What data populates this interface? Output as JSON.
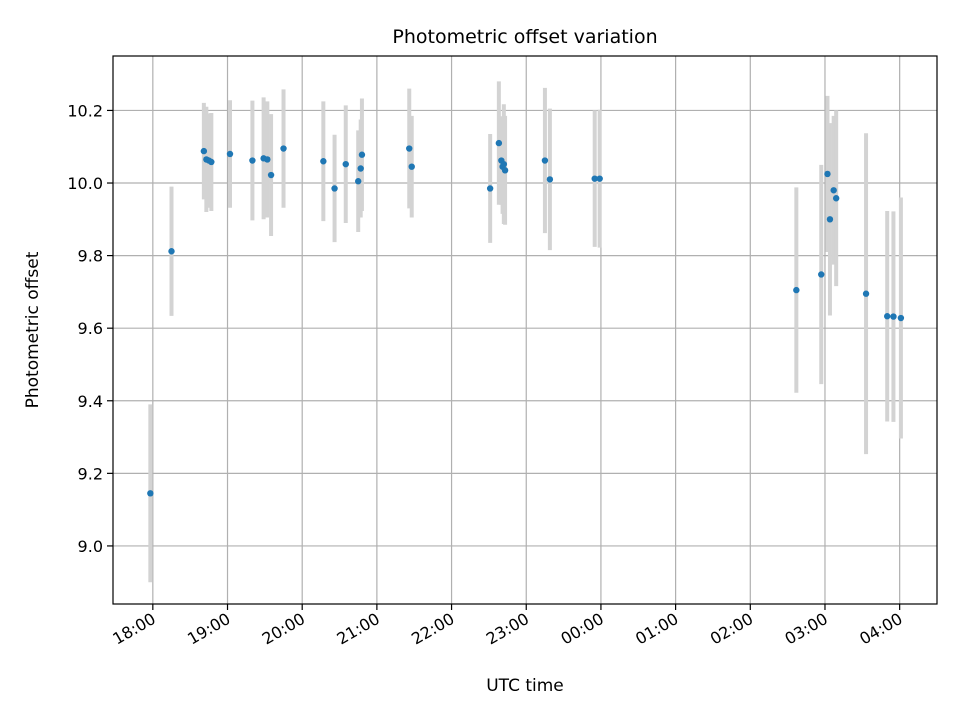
{
  "chart_data": {
    "type": "scatter",
    "title": "Photometric offset variation",
    "xlabel": "UTC time",
    "ylabel": "Photometric offset",
    "x_axis_kind": "time",
    "x_ticks": [
      {
        "t": "18:00",
        "label": "18:00"
      },
      {
        "t": "19:00",
        "label": "19:00"
      },
      {
        "t": "20:00",
        "label": "20:00"
      },
      {
        "t": "21:00",
        "label": "21:00"
      },
      {
        "t": "22:00",
        "label": "22:00"
      },
      {
        "t": "23:00",
        "label": "23:00"
      },
      {
        "t": "00:00",
        "label": "00:00"
      },
      {
        "t": "01:00",
        "label": "01:00"
      },
      {
        "t": "02:00",
        "label": "02:00"
      },
      {
        "t": "03:00",
        "label": "03:00"
      },
      {
        "t": "04:00",
        "label": "04:00"
      }
    ],
    "xlim": [
      "17:28",
      "04:30"
    ],
    "ylim": [
      8.84,
      10.35
    ],
    "y_ticks": [
      9.0,
      9.2,
      9.4,
      9.6,
      9.8,
      10.0,
      10.2
    ],
    "y_tick_labels": [
      "9.0",
      "9.2",
      "9.4",
      "9.6",
      "9.8",
      "10.0",
      "10.2"
    ],
    "grid": true,
    "colors": {
      "point": "#1f77b4",
      "errorbar": "#d3d3d3",
      "grid": "#b0b0b0"
    },
    "points": [
      {
        "t": "17:58",
        "y": 9.145,
        "err": 0.245
      },
      {
        "t": "18:15",
        "y": 9.812,
        "err": 0.178
      },
      {
        "t": "18:41",
        "y": 10.088,
        "err": 0.133
      },
      {
        "t": "18:43",
        "y": 10.065,
        "err": 0.145
      },
      {
        "t": "18:45",
        "y": 10.062,
        "err": 0.13
      },
      {
        "t": "18:47",
        "y": 10.058,
        "err": 0.135
      },
      {
        "t": "19:02",
        "y": 10.08,
        "err": 0.148
      },
      {
        "t": "19:20",
        "y": 10.062,
        "err": 0.165
      },
      {
        "t": "19:29",
        "y": 10.068,
        "err": 0.168
      },
      {
        "t": "19:32",
        "y": 10.065,
        "err": 0.16
      },
      {
        "t": "19:35",
        "y": 10.022,
        "err": 0.168
      },
      {
        "t": "19:45",
        "y": 10.095,
        "err": 0.163
      },
      {
        "t": "20:17",
        "y": 10.06,
        "err": 0.165
      },
      {
        "t": "20:26",
        "y": 9.985,
        "err": 0.148
      },
      {
        "t": "20:35",
        "y": 10.052,
        "err": 0.162
      },
      {
        "t": "20:45",
        "y": 10.005,
        "err": 0.14
      },
      {
        "t": "20:47",
        "y": 10.04,
        "err": 0.135
      },
      {
        "t": "20:48",
        "y": 10.078,
        "err": 0.155
      },
      {
        "t": "21:26",
        "y": 10.095,
        "err": 0.165
      },
      {
        "t": "21:28",
        "y": 10.045,
        "err": 0.14
      },
      {
        "t": "22:31",
        "y": 9.985,
        "err": 0.15
      },
      {
        "t": "22:38",
        "y": 10.11,
        "err": 0.17
      },
      {
        "t": "22:40",
        "y": 10.062,
        "err": 0.122
      },
      {
        "t": "22:41",
        "y": 10.045,
        "err": 0.13
      },
      {
        "t": "22:42",
        "y": 10.052,
        "err": 0.165
      },
      {
        "t": "22:43",
        "y": 10.035,
        "err": 0.15
      },
      {
        "t": "23:15",
        "y": 10.062,
        "err": 0.2
      },
      {
        "t": "23:19",
        "y": 10.01,
        "err": 0.195
      },
      {
        "t": "23:55",
        "y": 10.012,
        "err": 0.188
      },
      {
        "t": "23:59",
        "y": 10.012,
        "err": 0.19
      },
      {
        "t": "02:37",
        "y": 9.705,
        "err": 0.283
      },
      {
        "t": "02:57",
        "y": 9.748,
        "err": 0.302
      },
      {
        "t": "03:02",
        "y": 10.025,
        "err": 0.215
      },
      {
        "t": "03:04",
        "y": 9.9,
        "err": 0.265
      },
      {
        "t": "03:07",
        "y": 9.98,
        "err": 0.205
      },
      {
        "t": "03:09",
        "y": 9.958,
        "err": 0.242
      },
      {
        "t": "03:33",
        "y": 9.695,
        "err": 0.442
      },
      {
        "t": "03:50",
        "y": 9.633,
        "err": 0.29
      },
      {
        "t": "03:55",
        "y": 9.632,
        "err": 0.29
      },
      {
        "t": "04:01",
        "y": 9.628,
        "err": 0.332
      }
    ]
  }
}
